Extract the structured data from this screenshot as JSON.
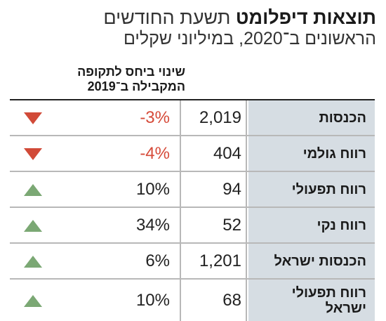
{
  "header": {
    "title_bold": "תוצאות דיפלומט",
    "title_regular": "תשעת החודשים",
    "subtitle": "הראשונים ב־2020, במיליוני שקלים"
  },
  "column_header": {
    "change_label_line1": "שינוי ביחס לתקופה",
    "change_label_line2": "המקבילה ב־2019"
  },
  "colors": {
    "negative": "#d64b3a",
    "positive": "#7ba874",
    "label_background": "#d6dde3"
  },
  "rows": [
    {
      "label": "הכנסות",
      "value": "2,019",
      "change": "-3%",
      "direction": "down",
      "icon": "down-triangle-icon"
    },
    {
      "label": "רווח גולמי",
      "value": "404",
      "change": "-4%",
      "direction": "down",
      "icon": "down-triangle-icon"
    },
    {
      "label": "רווח תפעולי",
      "value": "94",
      "change": "10%",
      "direction": "up",
      "icon": "up-triangle-icon"
    },
    {
      "label": "רווח נקי",
      "value": "52",
      "change": "34%",
      "direction": "up",
      "icon": "up-triangle-icon"
    },
    {
      "label": "הכנסות ישראל",
      "value": "1,201",
      "change": "6%",
      "direction": "up",
      "icon": "up-triangle-icon"
    },
    {
      "label": "רווח תפעולי ישראל",
      "value": "68",
      "change": "10%",
      "direction": "up",
      "icon": "up-triangle-icon"
    }
  ]
}
